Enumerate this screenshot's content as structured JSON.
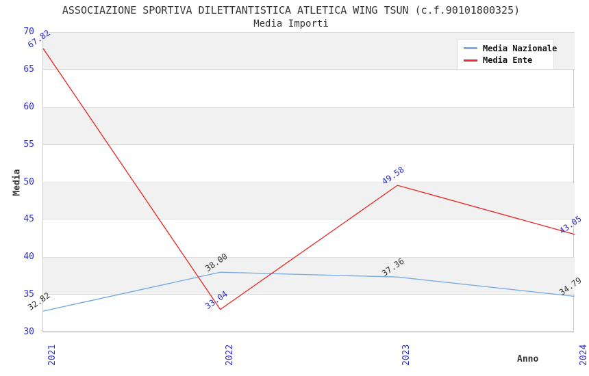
{
  "title": "ASSOCIAZIONE SPORTIVA DILETTANTISTICA ATLETICA WING TSUN (c.f.90101800325)",
  "subtitle": "Media Importi",
  "chart_data": {
    "type": "line",
    "x": [
      "2021",
      "2022",
      "2023",
      "2024"
    ],
    "series": [
      {
        "name": "Media Nazionale",
        "values": [
          32.82,
          38.0,
          37.36,
          34.79
        ],
        "color": "#77ade2",
        "label_color": "#333333"
      },
      {
        "name": "Media Ente",
        "values": [
          67.82,
          33.04,
          49.58,
          43.05
        ],
        "color": "#e63030",
        "label_color": "#2828c0"
      }
    ],
    "xlabel": "Anno",
    "ylabel": "Media",
    "ylim": [
      30,
      70
    ],
    "ytick_step": 5,
    "grid": "alternating-horizontal-bands",
    "legend_position": "top-right",
    "colors": {
      "tick_label": "#2d2dd4",
      "band_fill": "#f1f1f1",
      "band_border": "#dddddd",
      "axis_line": "#999999"
    }
  }
}
